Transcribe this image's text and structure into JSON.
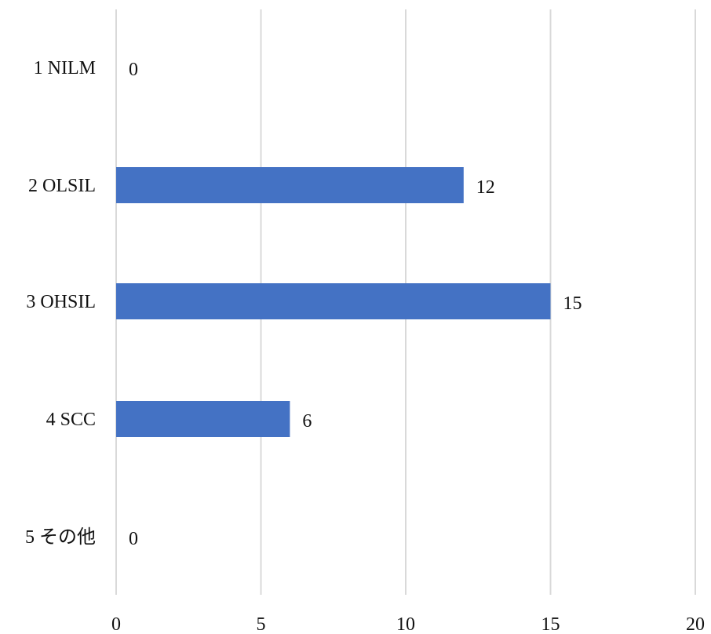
{
  "chart_data": {
    "type": "bar",
    "orientation": "horizontal",
    "categories": [
      "1 NILM",
      "2 OLSIL",
      "3 OHSIL",
      "4 SCC",
      "5 その他"
    ],
    "values": [
      0,
      12,
      15,
      6,
      0
    ],
    "data_labels": [
      "0",
      "12",
      "15",
      "6",
      "0"
    ],
    "xlim": [
      0,
      20
    ],
    "x_ticks": [
      0,
      5,
      10,
      15,
      20
    ],
    "grid": "vertical",
    "legend": "none",
    "bar_color": "#4472C4"
  }
}
